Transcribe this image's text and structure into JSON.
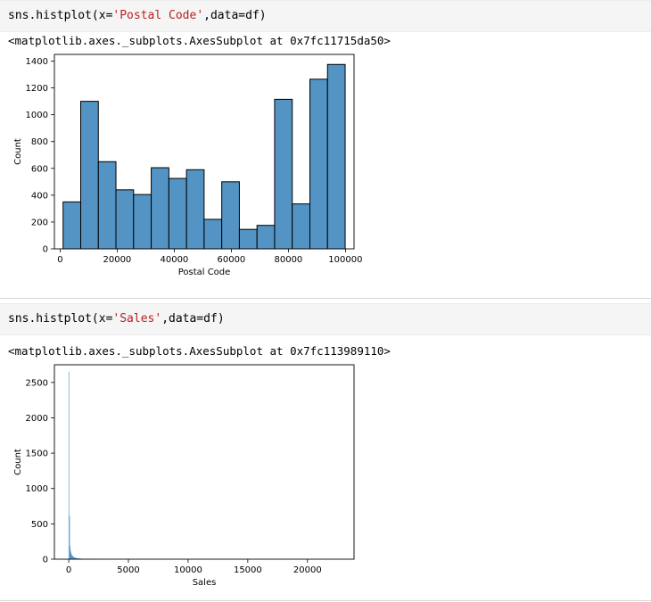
{
  "cells": [
    {
      "code": {
        "func": "sns.histplot(x=",
        "arg_string": "'Postal Code'",
        "rest": ",data=df)"
      },
      "output_text": "<matplotlib.axes._subplots.AxesSubplot at 0x7fc11715da50>"
    },
    {
      "code": {
        "func": "sns.histplot(x=",
        "arg_string": "'Sales'",
        "rest": ",data=df)"
      },
      "output_text": "<matplotlib.axes._subplots.AxesSubplot at 0x7fc113989110>"
    }
  ],
  "colors": {
    "bar_fill": "#5394c4",
    "bar_edge": "#000000",
    "code_string": "#ba2121",
    "cell_bg": "#f5f5f5"
  },
  "chart_data": [
    {
      "type": "bar",
      "xlabel": "Postal Code",
      "ylabel": "Count",
      "xlim": [
        -2000,
        103000
      ],
      "ylim": [
        0,
        1450
      ],
      "xticks": [
        0,
        20000,
        40000,
        60000,
        80000,
        100000
      ],
      "xtick_labels": [
        "0",
        "20000",
        "40000",
        "60000",
        "80000",
        "100000"
      ],
      "yticks": [
        0,
        200,
        400,
        600,
        800,
        1000,
        1200,
        1400
      ],
      "ytick_labels": [
        "0",
        "200",
        "400",
        "600",
        "800",
        "1000",
        "1200",
        "1400"
      ],
      "bin_edges": [
        1040,
        7220,
        13400,
        19570,
        25750,
        31930,
        38110,
        44290,
        50460,
        56640,
        62820,
        69000,
        75170,
        81350,
        87530,
        93710,
        99890
      ],
      "counts": [
        350,
        1100,
        650,
        440,
        405,
        605,
        525,
        590,
        220,
        500,
        145,
        175,
        1115,
        335,
        1265,
        1375
      ]
    },
    {
      "type": "bar",
      "xlabel": "Sales",
      "ylabel": "Count",
      "xlim": [
        -1200,
        23900
      ],
      "ylim": [
        0,
        2750
      ],
      "xticks": [
        0,
        5000,
        10000,
        15000,
        20000
      ],
      "xtick_labels": [
        "0",
        "5000",
        "10000",
        "15000",
        "20000"
      ],
      "yticks": [
        0,
        500,
        1000,
        1500,
        2000,
        2500
      ],
      "ytick_labels": [
        "0",
        "500",
        "1000",
        "1500",
        "2000",
        "2500"
      ],
      "bins": [
        {
          "x": 0,
          "w": 38,
          "c": 2650
        },
        {
          "x": 38,
          "w": 38,
          "c": 610
        },
        {
          "x": 76,
          "w": 38,
          "c": 190
        },
        {
          "x": 114,
          "w": 38,
          "c": 130
        },
        {
          "x": 152,
          "w": 38,
          "c": 95
        },
        {
          "x": 190,
          "w": 38,
          "c": 75
        },
        {
          "x": 228,
          "w": 38,
          "c": 60
        },
        {
          "x": 266,
          "w": 38,
          "c": 50
        },
        {
          "x": 304,
          "w": 38,
          "c": 42
        },
        {
          "x": 342,
          "w": 38,
          "c": 36
        },
        {
          "x": 380,
          "w": 40,
          "c": 30
        },
        {
          "x": 420,
          "w": 40,
          "c": 26
        },
        {
          "x": 460,
          "w": 40,
          "c": 23
        },
        {
          "x": 500,
          "w": 50,
          "c": 20
        },
        {
          "x": 550,
          "w": 50,
          "c": 17
        },
        {
          "x": 600,
          "w": 50,
          "c": 15
        },
        {
          "x": 650,
          "w": 50,
          "c": 13
        },
        {
          "x": 700,
          "w": 75,
          "c": 11
        },
        {
          "x": 775,
          "w": 75,
          "c": 9
        },
        {
          "x": 850,
          "w": 75,
          "c": 8
        },
        {
          "x": 925,
          "w": 75,
          "c": 7
        },
        {
          "x": 1000,
          "w": 100,
          "c": 6
        },
        {
          "x": 1100,
          "w": 100,
          "c": 5
        },
        {
          "x": 1200,
          "w": 150,
          "c": 4
        },
        {
          "x": 1350,
          "w": 150,
          "c": 4
        },
        {
          "x": 1500,
          "w": 250,
          "c": 3
        },
        {
          "x": 1750,
          "w": 250,
          "c": 2
        },
        {
          "x": 2000,
          "w": 500,
          "c": 2
        }
      ]
    }
  ]
}
